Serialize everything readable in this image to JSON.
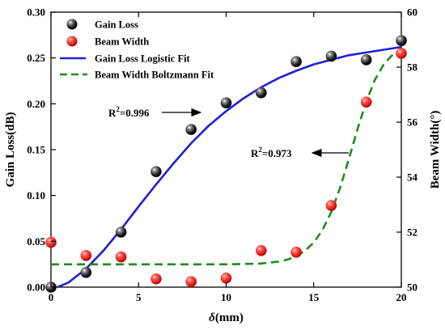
{
  "chart_data": {
    "type": "scatter",
    "xlabel": "δ(mm)",
    "ylabel_left": "Gain Loss(dB)",
    "ylabel_right": "Beam Width(°)",
    "xlim": [
      0,
      20
    ],
    "ylim_left": [
      0,
      0.3
    ],
    "ylim_right": [
      50,
      60
    ],
    "xticks": [
      0,
      5,
      10,
      15,
      20
    ],
    "yticks_left": [
      0.0,
      0.05,
      0.1,
      0.15,
      0.2,
      0.25,
      0.3
    ],
    "yticks_right": [
      50,
      52,
      54,
      56,
      58,
      60
    ],
    "grid": false,
    "legend_position": "top-left",
    "series": [
      {
        "name": "Gain Loss",
        "kind": "points",
        "axis": "left",
        "color": "#1a1a1a",
        "x": [
          0,
          2,
          4,
          6,
          8,
          10,
          12,
          14,
          16,
          18,
          20
        ],
        "y": [
          0.0,
          0.016,
          0.06,
          0.126,
          0.172,
          0.201,
          0.212,
          0.246,
          0.252,
          0.248,
          0.269
        ]
      },
      {
        "name": "Beam Width",
        "kind": "points",
        "axis": "right",
        "color": "#e8201c",
        "x": [
          0,
          2,
          4,
          6,
          8,
          10,
          12,
          14,
          16,
          18,
          20
        ],
        "y": [
          51.63,
          51.15,
          51.1,
          50.3,
          50.2,
          50.33,
          51.33,
          51.27,
          52.97,
          56.73,
          58.5
        ]
      },
      {
        "name": "Gain Loss Logistic Fit",
        "kind": "line",
        "axis": "left",
        "color": "#1f1fd6",
        "dash": "solid",
        "x": [
          0,
          1,
          2,
          3,
          4,
          5,
          6,
          7,
          8,
          9,
          10,
          11,
          12,
          13,
          14,
          15,
          16,
          17,
          18,
          19,
          20
        ],
        "y": [
          -0.003,
          0.005,
          0.02,
          0.04,
          0.063,
          0.088,
          0.112,
          0.135,
          0.157,
          0.176,
          0.192,
          0.206,
          0.218,
          0.228,
          0.236,
          0.243,
          0.248,
          0.253,
          0.256,
          0.259,
          0.262
        ]
      },
      {
        "name": "Beam Width Boltzmann Fit",
        "kind": "line",
        "axis": "right",
        "color": "#1e8c1e",
        "dash": "dashed",
        "x": [
          0,
          2,
          4,
          6,
          8,
          10,
          11,
          12,
          13,
          13.5,
          14,
          14.5,
          15,
          15.5,
          16,
          16.5,
          17,
          17.5,
          18,
          18.5,
          19,
          19.5,
          20
        ],
        "y": [
          50.83,
          50.83,
          50.83,
          50.83,
          50.83,
          50.83,
          50.84,
          50.86,
          50.93,
          51.0,
          51.12,
          51.32,
          51.62,
          52.08,
          52.73,
          53.6,
          54.65,
          55.75,
          56.75,
          57.55,
          58.1,
          58.45,
          58.65
        ]
      }
    ],
    "annotations": [
      {
        "text": "R²=0.996",
        "target_series": "Gain Loss Logistic Fit",
        "arrow": "right"
      },
      {
        "text": "R²=0.973",
        "target_series": "Beam Width Boltzmann Fit",
        "arrow": "left"
      }
    ]
  },
  "legend": {
    "gain_loss": "Gain Loss",
    "beam_width": "Beam Width",
    "gain_fit": "Gain Loss Logistic Fit",
    "beam_fit": "Beam Width Boltzmann Fit"
  },
  "annotation_labels": {
    "r2_left_prefix": "R",
    "r2_left_value": "=0.996",
    "r2_right_prefix": "R",
    "r2_right_value": "=0.973",
    "superscript": "2"
  },
  "axis_titles": {
    "x_symbol": "δ",
    "x_unit": "(mm)",
    "y_left": "Gain Loss(dB)",
    "y_right": "Beam Width(°)"
  },
  "tick_labels": {
    "x": [
      "0",
      "5",
      "10",
      "15",
      "20"
    ],
    "y_left": [
      "0.00",
      "0.05",
      "0.10",
      "0.15",
      "0.20",
      "0.25",
      "0.30"
    ],
    "y_right": [
      "50",
      "52",
      "54",
      "56",
      "58",
      "60"
    ]
  }
}
